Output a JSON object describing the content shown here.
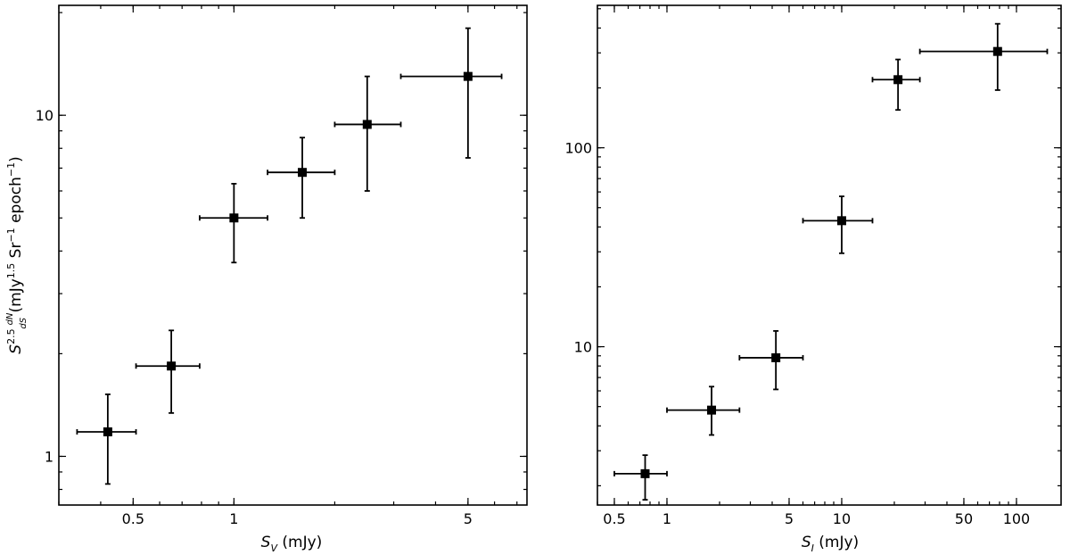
{
  "chart_data": [
    {
      "type": "scatter",
      "x_scale": "log",
      "y_scale": "log",
      "xlabel": {
        "base": "S",
        "sub": "V",
        "unit": " (mJy)"
      },
      "ylabel": {
        "base": "S",
        "exp": "2.5",
        "frac_num": "dN",
        "frac_den": "dS",
        "unit_pre": " (mJy",
        "unit_exp1": "1.5",
        "unit_mid": " Sr",
        "unit_exp2": "−1",
        "unit_post": " epoch",
        "unit_exp3": "−1",
        "unit_close": ")"
      },
      "xlim": [
        0.3,
        7.5
      ],
      "ylim": [
        0.72,
        21
      ],
      "x_ticks": [
        {
          "value": 0.5,
          "label": "0.5"
        },
        {
          "value": 1,
          "label": "1"
        },
        {
          "value": 5,
          "label": "5"
        }
      ],
      "y_ticks": [
        {
          "value": 1,
          "label": "1"
        },
        {
          "value": 10,
          "label": "10"
        }
      ],
      "points": [
        {
          "x": 0.42,
          "y": 1.18,
          "xerr": [
            0.34,
            0.51
          ],
          "yerr": [
            0.83,
            1.52
          ]
        },
        {
          "x": 0.65,
          "y": 1.84,
          "xerr": [
            0.51,
            0.79
          ],
          "yerr": [
            1.34,
            2.34
          ]
        },
        {
          "x": 1.0,
          "y": 5.0,
          "xerr": [
            0.79,
            1.26
          ],
          "yerr": [
            3.7,
            6.3
          ]
        },
        {
          "x": 1.6,
          "y": 6.8,
          "xerr": [
            1.26,
            2.0
          ],
          "yerr": [
            5.0,
            8.6
          ]
        },
        {
          "x": 2.5,
          "y": 9.4,
          "xerr": [
            2.0,
            3.15
          ],
          "yerr": [
            6.0,
            13.0
          ]
        },
        {
          "x": 5.0,
          "y": 13.0,
          "xerr": [
            3.15,
            6.3
          ],
          "yerr": [
            7.5,
            18.0
          ]
        }
      ]
    },
    {
      "type": "scatter",
      "x_scale": "log",
      "y_scale": "log",
      "xlabel": {
        "base": "S",
        "sub": "I",
        "unit": " (mJy)"
      },
      "ylim": [
        1.6,
        520
      ],
      "xlim": [
        0.4,
        180
      ],
      "x_ticks": [
        {
          "value": 0.5,
          "label": "0.5"
        },
        {
          "value": 1,
          "label": "1"
        },
        {
          "value": 5,
          "label": "5"
        },
        {
          "value": 10,
          "label": "10"
        },
        {
          "value": 50,
          "label": "50"
        },
        {
          "value": 100,
          "label": "100"
        }
      ],
      "y_ticks": [
        {
          "value": 10,
          "label": "10"
        },
        {
          "value": 100,
          "label": "100"
        }
      ],
      "points": [
        {
          "x": 0.75,
          "y": 2.3,
          "xerr": [
            0.5,
            1.0
          ],
          "yerr": [
            1.7,
            2.85
          ]
        },
        {
          "x": 1.8,
          "y": 4.8,
          "xerr": [
            1.0,
            2.6
          ],
          "yerr": [
            3.6,
            6.3
          ]
        },
        {
          "x": 4.2,
          "y": 8.8,
          "xerr": [
            2.6,
            6.0
          ],
          "yerr": [
            6.1,
            12.0
          ]
        },
        {
          "x": 10.0,
          "y": 43.0,
          "xerr": [
            6.0,
            15.0
          ],
          "yerr": [
            29.5,
            57.0
          ]
        },
        {
          "x": 21.0,
          "y": 220.0,
          "xerr": [
            15.0,
            28.0
          ],
          "yerr": [
            155.0,
            278.0
          ]
        },
        {
          "x": 78.0,
          "y": 305.0,
          "xerr": [
            28.0,
            150.0
          ],
          "yerr": [
            195.0,
            420.0
          ]
        }
      ]
    }
  ]
}
